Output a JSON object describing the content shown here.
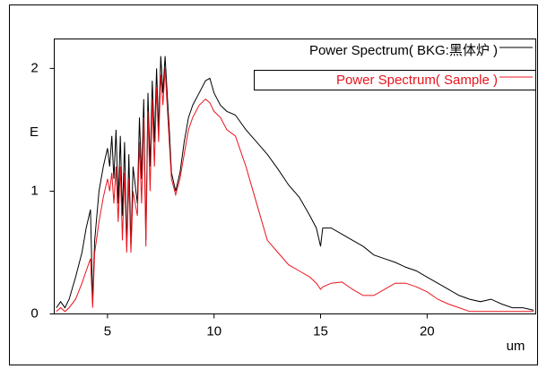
{
  "chart_data": {
    "type": "line",
    "xlabel": "um",
    "ylabel": "E",
    "x": [
      2.6,
      2.8,
      3.0,
      3.2,
      3.5,
      3.8,
      4.0,
      4.2,
      4.3,
      4.4,
      4.6,
      4.8,
      5.0,
      5.1,
      5.2,
      5.3,
      5.4,
      5.5,
      5.6,
      5.7,
      5.8,
      5.9,
      6.0,
      6.1,
      6.2,
      6.4,
      6.5,
      6.6,
      6.7,
      6.8,
      6.9,
      7.0,
      7.1,
      7.2,
      7.3,
      7.4,
      7.5,
      7.6,
      7.7,
      7.8,
      7.9,
      8.0,
      8.2,
      8.4,
      8.6,
      8.8,
      9.0,
      9.3,
      9.6,
      9.8,
      10.0,
      10.3,
      10.6,
      11.0,
      11.5,
      12.0,
      12.5,
      13.0,
      13.5,
      14.0,
      14.5,
      14.8,
      15.0,
      15.1,
      15.5,
      16.0,
      16.5,
      17.0,
      17.5,
      18.0,
      18.5,
      19.0,
      19.5,
      20.0,
      20.5,
      21.0,
      21.5,
      22.0,
      22.5,
      23.0,
      23.5,
      24.0,
      24.5,
      25.0
    ],
    "series": [
      {
        "name": "Power Spectrum( BKG:黑体炉 )",
        "color": "#000000",
        "values": [
          0.05,
          0.1,
          0.05,
          0.12,
          0.3,
          0.5,
          0.7,
          0.85,
          0.1,
          0.6,
          1.0,
          1.2,
          1.35,
          1.2,
          1.45,
          1.1,
          1.5,
          0.9,
          1.45,
          0.8,
          1.4,
          0.55,
          1.3,
          0.55,
          1.2,
          0.9,
          1.6,
          1.1,
          1.75,
          0.6,
          1.8,
          1.2,
          1.9,
          1.4,
          2.0,
          1.5,
          2.1,
          1.8,
          2.1,
          1.8,
          1.5,
          1.15,
          1.0,
          1.15,
          1.4,
          1.6,
          1.7,
          1.8,
          1.9,
          1.92,
          1.8,
          1.7,
          1.65,
          1.62,
          1.5,
          1.4,
          1.3,
          1.18,
          1.05,
          0.95,
          0.8,
          0.7,
          0.55,
          0.7,
          0.7,
          0.65,
          0.6,
          0.55,
          0.48,
          0.45,
          0.42,
          0.38,
          0.35,
          0.3,
          0.25,
          0.2,
          0.15,
          0.12,
          0.1,
          0.12,
          0.08,
          0.05,
          0.05,
          0.03
        ]
      },
      {
        "name": "Power Spectrum( Sample )",
        "color": "#e8141c",
        "values": [
          0.02,
          0.05,
          0.02,
          0.05,
          0.12,
          0.25,
          0.35,
          0.45,
          0.05,
          0.5,
          0.75,
          0.95,
          1.1,
          1.0,
          1.15,
          0.9,
          1.2,
          0.75,
          1.2,
          0.6,
          1.15,
          0.5,
          1.1,
          0.5,
          1.0,
          0.8,
          1.4,
          0.9,
          1.6,
          0.55,
          1.65,
          1.0,
          1.75,
          1.2,
          1.85,
          1.4,
          1.95,
          1.7,
          2.0,
          1.7,
          1.4,
          1.1,
          0.97,
          1.1,
          1.3,
          1.5,
          1.6,
          1.7,
          1.75,
          1.72,
          1.65,
          1.6,
          1.5,
          1.45,
          1.2,
          0.9,
          0.6,
          0.5,
          0.4,
          0.35,
          0.3,
          0.25,
          0.2,
          0.22,
          0.25,
          0.26,
          0.2,
          0.15,
          0.15,
          0.2,
          0.25,
          0.25,
          0.22,
          0.18,
          0.12,
          0.08,
          0.05,
          0.02,
          0.02,
          0.02,
          0.02,
          0.02,
          0.02,
          0.02
        ]
      }
    ],
    "xlim": [
      2.5,
      25.1
    ],
    "ylim": [
      0,
      2.24
    ],
    "xticks": [
      5,
      10,
      15,
      20
    ],
    "yticks": [
      0,
      1,
      2
    ],
    "legend": "upper-right"
  }
}
